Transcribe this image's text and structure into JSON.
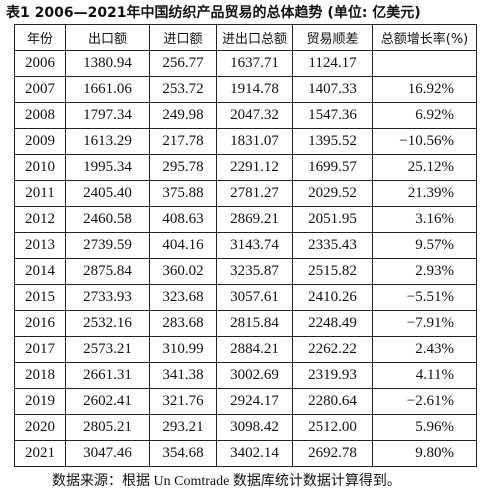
{
  "title": "表1 2006—2021年中国纺织产品贸易的总体趋势 (单位: 亿美元)",
  "table": {
    "header": [
      "年份",
      "出口额",
      "进口额",
      "进出口总额",
      "贸易顺差",
      "总额增长率(%)"
    ],
    "rows": [
      [
        "2006",
        "1380.94",
        "256.77",
        "1637.71",
        "1124.17"
      ],
      [
        "2007",
        "1661.06",
        "253.72",
        "1914.78",
        "1407.33",
        "16.92%"
      ],
      [
        "2008",
        "1797.34",
        "249.98",
        "2047.32",
        "1547.36",
        "6.92%"
      ],
      [
        "2009",
        "1613.29",
        "217.78",
        "1831.07",
        "1395.52",
        "−10.56%"
      ],
      [
        "2010",
        "1995.34",
        "295.78",
        "2291.12",
        "1699.57",
        "25.12%"
      ],
      [
        "2011",
        "2405.40",
        "375.88",
        "2781.27",
        "2029.52",
        "21.39%"
      ],
      [
        "2012",
        "2460.58",
        "408.63",
        "2869.21",
        "2051.95",
        "3.16%"
      ],
      [
        "2013",
        "2739.59",
        "404.16",
        "3143.74",
        "2335.43",
        "9.57%"
      ],
      [
        "2014",
        "2875.84",
        "360.02",
        "3235.87",
        "2515.82",
        "2.93%"
      ],
      [
        "2015",
        "2733.93",
        "323.68",
        "3057.61",
        "2410.26",
        "−5.51%"
      ],
      [
        "2016",
        "2532.16",
        "283.68",
        "2815.84",
        "2248.49",
        "−7.91%"
      ],
      [
        "2017",
        "2573.21",
        "310.99",
        "2884.21",
        "2262.22",
        "2.43%"
      ],
      [
        "2018",
        "2661.31",
        "341.38",
        "3002.69",
        "2319.93",
        "4.11%"
      ],
      [
        "2019",
        "2602.41",
        "321.76",
        "2924.17",
        "2280.64",
        "−2.61%"
      ],
      [
        "2020",
        "2805.21",
        "293.21",
        "3098.42",
        "2512.00",
        "5.96%"
      ],
      [
        "2021",
        "3047.46",
        "354.68",
        "3402.14",
        "2692.78",
        "9.80%"
      ]
    ]
  },
  "footnote": "数据来源：根据 Un Comtrade 数据库统计数据计算得到。"
}
